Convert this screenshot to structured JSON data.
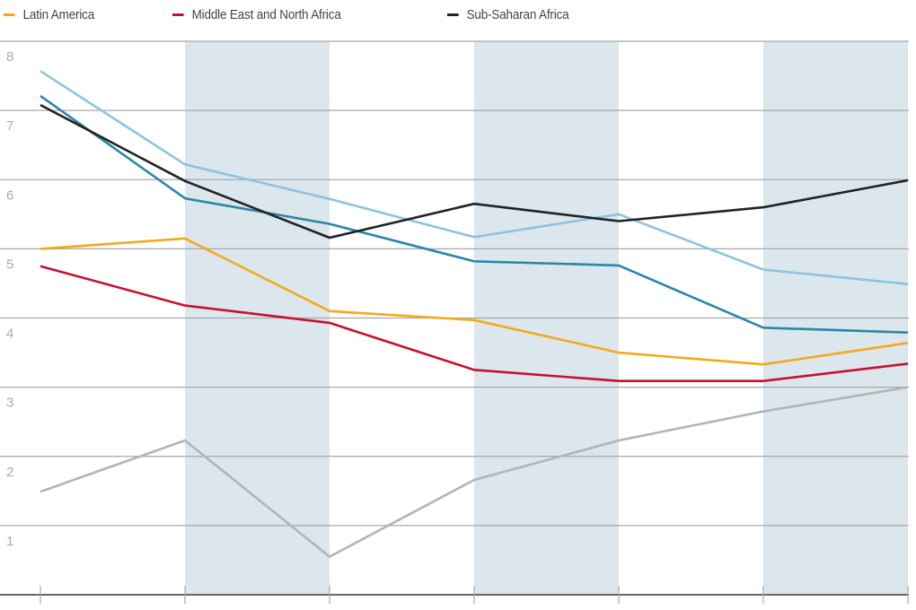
{
  "legend": [
    {
      "label": "Latin America",
      "color": "#f5a81c",
      "x": 4
    },
    {
      "label": "Middle East and North Africa",
      "color": "#c8102e",
      "x": 192
    },
    {
      "label": "Sub-Saharan Africa",
      "color": "#222222",
      "x": 498
    }
  ],
  "chart_data": {
    "type": "line",
    "title": "",
    "xlabel": "",
    "ylabel": "",
    "x": [
      1,
      2,
      3,
      4,
      5,
      6,
      7
    ],
    "x_tick_labels": [],
    "ylim": [
      0,
      8
    ],
    "y_ticks": [
      1,
      2,
      3,
      4,
      5,
      6,
      7,
      8
    ],
    "grid": true,
    "shaded_bands": [
      [
        2,
        3
      ],
      [
        4,
        5
      ],
      [
        6,
        7
      ]
    ],
    "legend_position": "top",
    "series": [
      {
        "name": "Latin America",
        "color": "#f5a81c",
        "values": [
          5.0,
          5.15,
          4.1,
          3.97,
          3.5,
          3.33,
          3.64
        ]
      },
      {
        "name": "Middle East and North Africa",
        "color": "#c8102e",
        "values": [
          4.75,
          4.18,
          3.93,
          3.25,
          3.09,
          3.09,
          3.34
        ]
      },
      {
        "name": "Sub-Saharan Africa",
        "color": "#222222",
        "values": [
          7.08,
          5.98,
          5.16,
          5.65,
          5.4,
          5.6,
          5.99
        ]
      },
      {
        "name": "(unlabeled light blue)",
        "color": "#8fc3dd",
        "values": [
          7.57,
          6.22,
          5.72,
          5.17,
          5.5,
          4.7,
          4.49
        ]
      },
      {
        "name": "(unlabeled teal)",
        "color": "#2a87a6",
        "values": [
          7.21,
          5.73,
          5.36,
          4.82,
          4.76,
          3.86,
          3.79
        ]
      },
      {
        "name": "(unlabeled gray)",
        "color": "#b4b4b4",
        "values": [
          1.49,
          2.23,
          0.55,
          1.66,
          2.23,
          2.65,
          3.0
        ]
      }
    ]
  }
}
